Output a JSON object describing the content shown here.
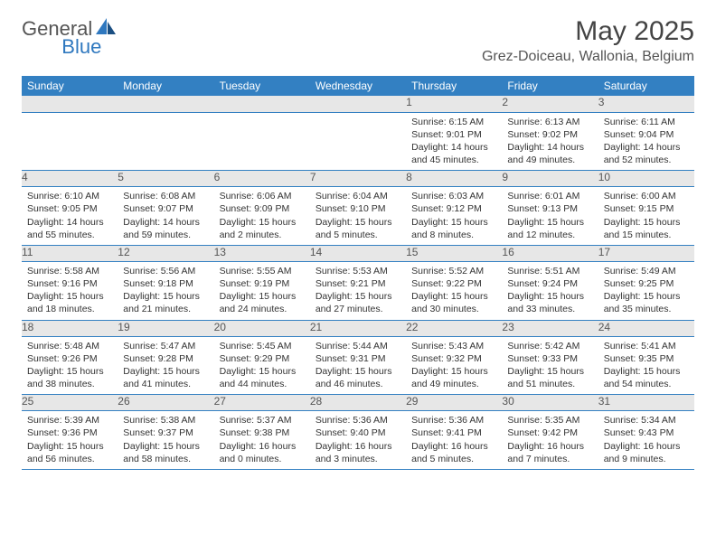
{
  "logo": {
    "text1": "General",
    "text2": "Blue"
  },
  "title": "May 2025",
  "location": "Grez-Doiceau, Wallonia, Belgium",
  "colors": {
    "header_bg": "#3380c2",
    "header_fg": "#ffffff",
    "daynum_bg": "#e7e7e7",
    "border": "#3380c2",
    "logo_gray": "#555555",
    "logo_blue": "#2f78bf"
  },
  "weekdays": [
    "Sunday",
    "Monday",
    "Tuesday",
    "Wednesday",
    "Thursday",
    "Friday",
    "Saturday"
  ],
  "weeks": [
    [
      {
        "n": "",
        "body": ""
      },
      {
        "n": "",
        "body": ""
      },
      {
        "n": "",
        "body": ""
      },
      {
        "n": "",
        "body": ""
      },
      {
        "n": "1",
        "body": "Sunrise: 6:15 AM\nSunset: 9:01 PM\nDaylight: 14 hours and 45 minutes."
      },
      {
        "n": "2",
        "body": "Sunrise: 6:13 AM\nSunset: 9:02 PM\nDaylight: 14 hours and 49 minutes."
      },
      {
        "n": "3",
        "body": "Sunrise: 6:11 AM\nSunset: 9:04 PM\nDaylight: 14 hours and 52 minutes."
      }
    ],
    [
      {
        "n": "4",
        "body": "Sunrise: 6:10 AM\nSunset: 9:05 PM\nDaylight: 14 hours and 55 minutes."
      },
      {
        "n": "5",
        "body": "Sunrise: 6:08 AM\nSunset: 9:07 PM\nDaylight: 14 hours and 59 minutes."
      },
      {
        "n": "6",
        "body": "Sunrise: 6:06 AM\nSunset: 9:09 PM\nDaylight: 15 hours and 2 minutes."
      },
      {
        "n": "7",
        "body": "Sunrise: 6:04 AM\nSunset: 9:10 PM\nDaylight: 15 hours and 5 minutes."
      },
      {
        "n": "8",
        "body": "Sunrise: 6:03 AM\nSunset: 9:12 PM\nDaylight: 15 hours and 8 minutes."
      },
      {
        "n": "9",
        "body": "Sunrise: 6:01 AM\nSunset: 9:13 PM\nDaylight: 15 hours and 12 minutes."
      },
      {
        "n": "10",
        "body": "Sunrise: 6:00 AM\nSunset: 9:15 PM\nDaylight: 15 hours and 15 minutes."
      }
    ],
    [
      {
        "n": "11",
        "body": "Sunrise: 5:58 AM\nSunset: 9:16 PM\nDaylight: 15 hours and 18 minutes."
      },
      {
        "n": "12",
        "body": "Sunrise: 5:56 AM\nSunset: 9:18 PM\nDaylight: 15 hours and 21 minutes."
      },
      {
        "n": "13",
        "body": "Sunrise: 5:55 AM\nSunset: 9:19 PM\nDaylight: 15 hours and 24 minutes."
      },
      {
        "n": "14",
        "body": "Sunrise: 5:53 AM\nSunset: 9:21 PM\nDaylight: 15 hours and 27 minutes."
      },
      {
        "n": "15",
        "body": "Sunrise: 5:52 AM\nSunset: 9:22 PM\nDaylight: 15 hours and 30 minutes."
      },
      {
        "n": "16",
        "body": "Sunrise: 5:51 AM\nSunset: 9:24 PM\nDaylight: 15 hours and 33 minutes."
      },
      {
        "n": "17",
        "body": "Sunrise: 5:49 AM\nSunset: 9:25 PM\nDaylight: 15 hours and 35 minutes."
      }
    ],
    [
      {
        "n": "18",
        "body": "Sunrise: 5:48 AM\nSunset: 9:26 PM\nDaylight: 15 hours and 38 minutes."
      },
      {
        "n": "19",
        "body": "Sunrise: 5:47 AM\nSunset: 9:28 PM\nDaylight: 15 hours and 41 minutes."
      },
      {
        "n": "20",
        "body": "Sunrise: 5:45 AM\nSunset: 9:29 PM\nDaylight: 15 hours and 44 minutes."
      },
      {
        "n": "21",
        "body": "Sunrise: 5:44 AM\nSunset: 9:31 PM\nDaylight: 15 hours and 46 minutes."
      },
      {
        "n": "22",
        "body": "Sunrise: 5:43 AM\nSunset: 9:32 PM\nDaylight: 15 hours and 49 minutes."
      },
      {
        "n": "23",
        "body": "Sunrise: 5:42 AM\nSunset: 9:33 PM\nDaylight: 15 hours and 51 minutes."
      },
      {
        "n": "24",
        "body": "Sunrise: 5:41 AM\nSunset: 9:35 PM\nDaylight: 15 hours and 54 minutes."
      }
    ],
    [
      {
        "n": "25",
        "body": "Sunrise: 5:39 AM\nSunset: 9:36 PM\nDaylight: 15 hours and 56 minutes."
      },
      {
        "n": "26",
        "body": "Sunrise: 5:38 AM\nSunset: 9:37 PM\nDaylight: 15 hours and 58 minutes."
      },
      {
        "n": "27",
        "body": "Sunrise: 5:37 AM\nSunset: 9:38 PM\nDaylight: 16 hours and 0 minutes."
      },
      {
        "n": "28",
        "body": "Sunrise: 5:36 AM\nSunset: 9:40 PM\nDaylight: 16 hours and 3 minutes."
      },
      {
        "n": "29",
        "body": "Sunrise: 5:36 AM\nSunset: 9:41 PM\nDaylight: 16 hours and 5 minutes."
      },
      {
        "n": "30",
        "body": "Sunrise: 5:35 AM\nSunset: 9:42 PM\nDaylight: 16 hours and 7 minutes."
      },
      {
        "n": "31",
        "body": "Sunrise: 5:34 AM\nSunset: 9:43 PM\nDaylight: 16 hours and 9 minutes."
      }
    ]
  ]
}
